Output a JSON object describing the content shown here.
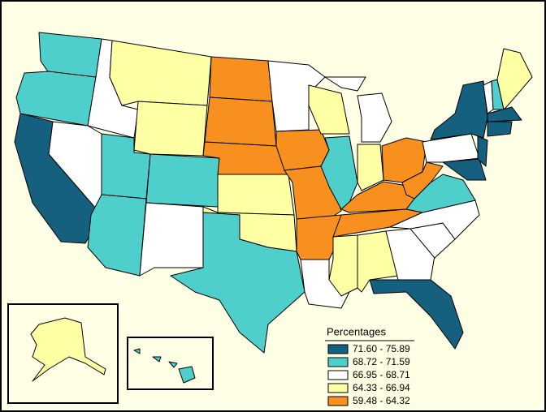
{
  "legend": {
    "title": "Percentages",
    "items": [
      {
        "label": "71.60 - 75.89",
        "color": "#15607f"
      },
      {
        "label": "68.72 - 71.59",
        "color": "#4fcfcc"
      },
      {
        "label": "66.95 - 68.71",
        "color": "#ffffff"
      },
      {
        "label": "64.33 - 66.94",
        "color": "#ffffa3"
      },
      {
        "label": "59.48 - 64.32",
        "color": "#f7901e"
      }
    ]
  }
}
